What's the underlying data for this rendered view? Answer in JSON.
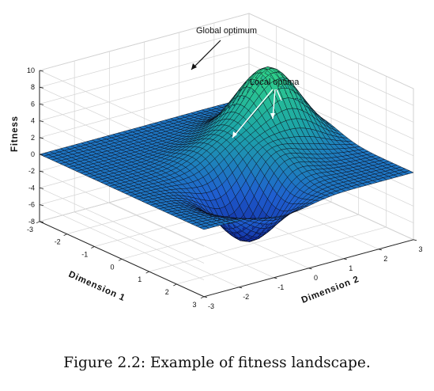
{
  "chart_data": {
    "type": "surface",
    "title": "",
    "xlabel": "Dimension 1",
    "ylabel": "Dimension 2",
    "zlabel": "Fitness",
    "xlim": [
      -3,
      3
    ],
    "ylim": [
      -3,
      3
    ],
    "zlim": [
      -8,
      10
    ],
    "x_ticks": [
      3,
      2,
      1,
      0,
      -1,
      -2,
      -3
    ],
    "y_ticks": [
      -3,
      -2,
      -1,
      0,
      1,
      2,
      3
    ],
    "z_ticks": [
      10,
      8,
      6,
      4,
      2,
      0,
      -2,
      -4,
      -6,
      -8
    ],
    "grid": true,
    "colormap": [
      "#0c1a8e",
      "#1f5fd0",
      "#1da6a6",
      "#30d486"
    ],
    "function": "peaks-like surface: z(x,y) with one global maximum, two local maxima and one deep minimum",
    "peaks": [
      {
        "role": "global optimum",
        "x": -0.5,
        "y": 1.6,
        "z": 8.8
      },
      {
        "role": "local optimum",
        "x": 1.2,
        "y": 0.3,
        "z": 3.2
      },
      {
        "role": "local optimum",
        "x": -0.2,
        "y": -0.1,
        "z": 2.0
      },
      {
        "role": "minimum",
        "x": 1.6,
        "y": -0.6,
        "z": -6.8
      }
    ],
    "annotations": [
      {
        "text": "Global optimum"
      },
      {
        "text": "Local optima"
      }
    ]
  },
  "caption": "Figure 2.2: Example of fitness landscape."
}
